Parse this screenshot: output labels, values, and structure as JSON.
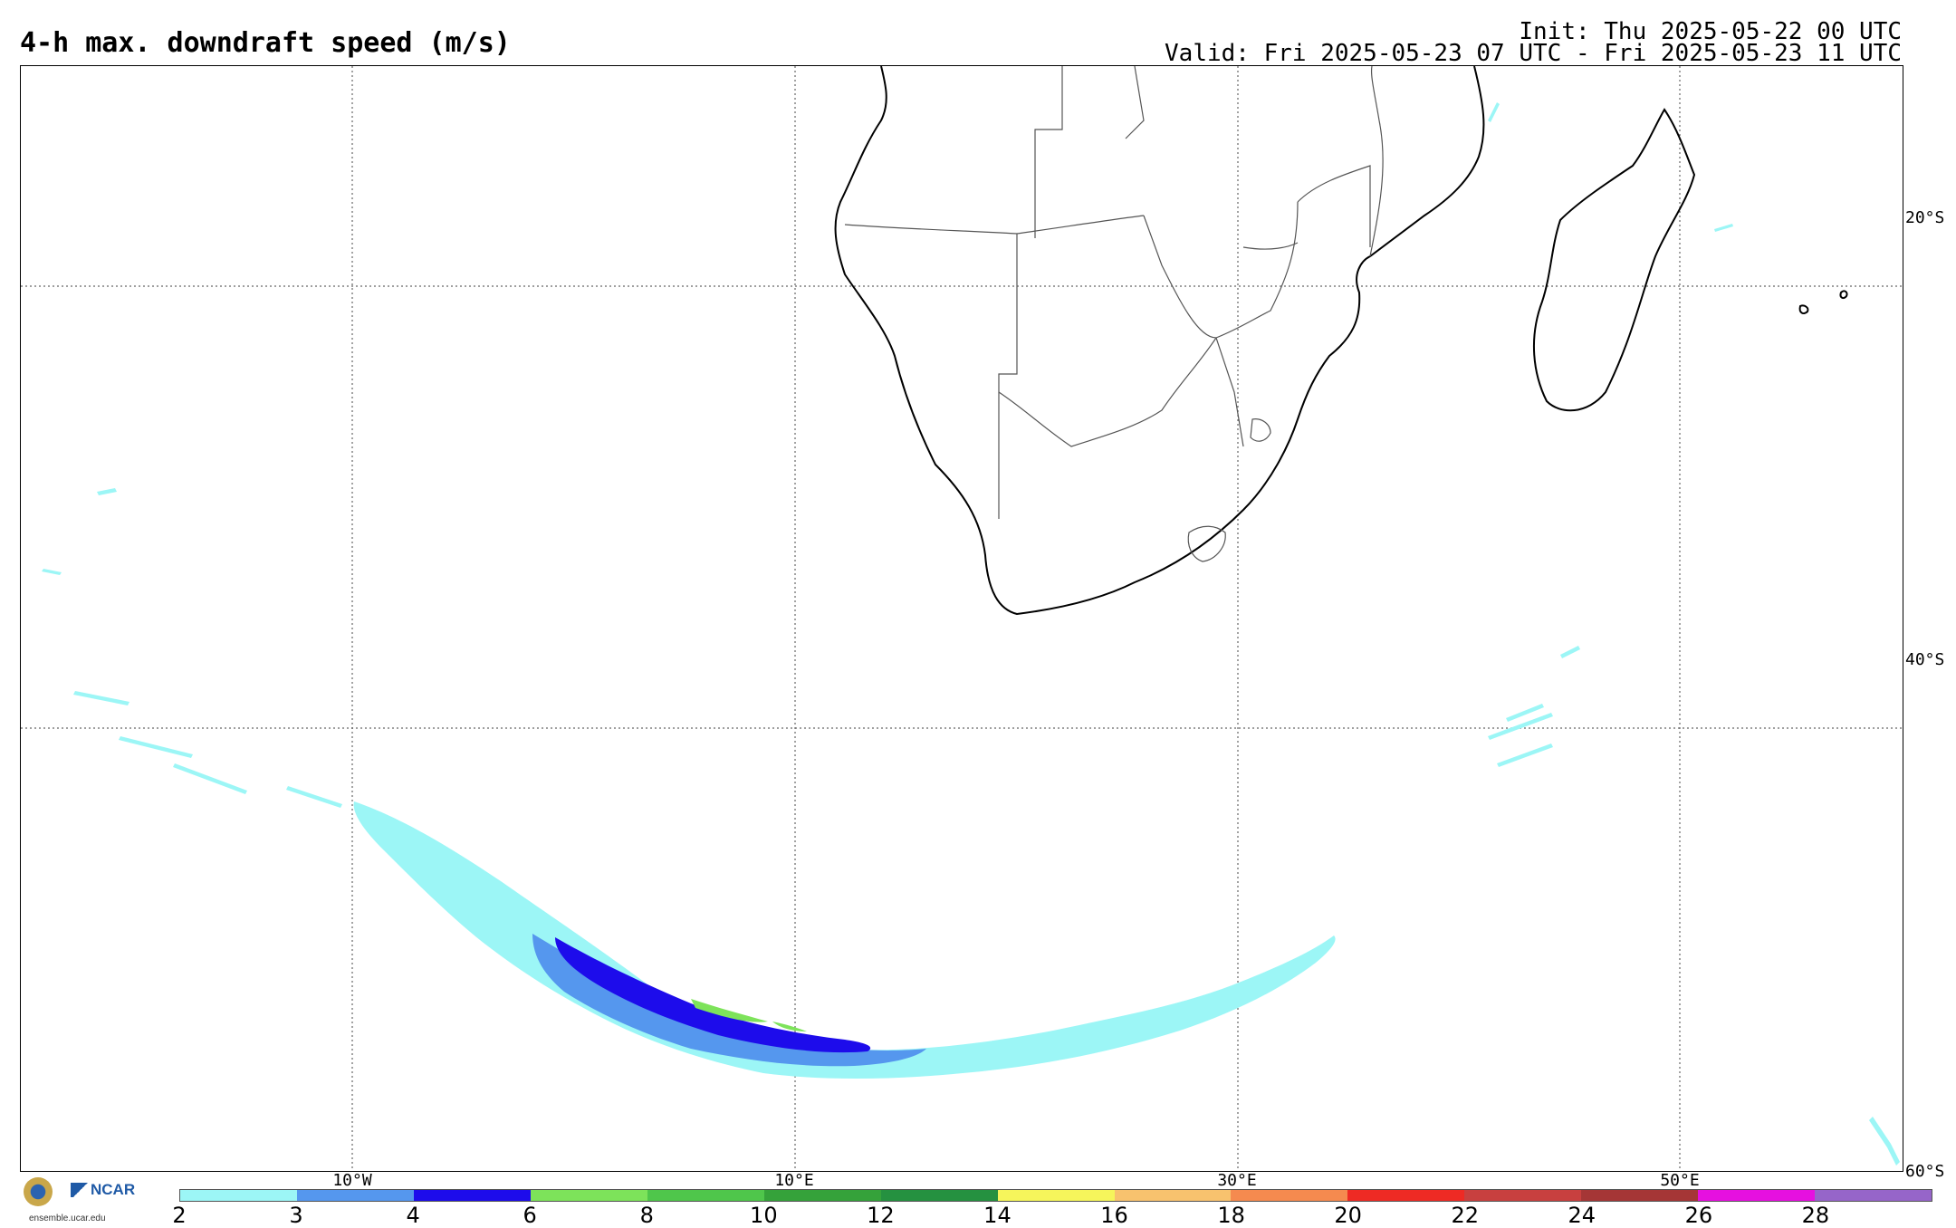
{
  "header": {
    "title": "4-h max. downdraft speed (m/s)",
    "init": "Init: Thu 2025-05-22 00 UTC",
    "valid": "Valid: Fri 2025-05-23 07 UTC - Fri 2025-05-23 11 UTC"
  },
  "map": {
    "lat_labels": [
      "20°S",
      "40°S",
      "60°S"
    ],
    "lon_labels": [
      "10°W",
      "10°E",
      "30°E",
      "50°E"
    ],
    "gridlines": "dotted"
  },
  "colorbar": {
    "ticks": [
      "2",
      "3",
      "4",
      "6",
      "8",
      "10",
      "12",
      "14",
      "16",
      "18",
      "20",
      "22",
      "24",
      "26",
      "28"
    ],
    "colors": [
      "#9cf6f6",
      "#5597ee",
      "#1d0ceb",
      "#7de35a",
      "#4fc64b",
      "#35a23a",
      "#259140",
      "#f6f55b",
      "#f8c26e",
      "#f58a4f",
      "#ee2a24",
      "#c8403f",
      "#a53636",
      "#e610e0",
      "#9665c9"
    ]
  },
  "logo": {
    "org": "NCAR",
    "url": "ensemble.ucar.edu"
  }
}
